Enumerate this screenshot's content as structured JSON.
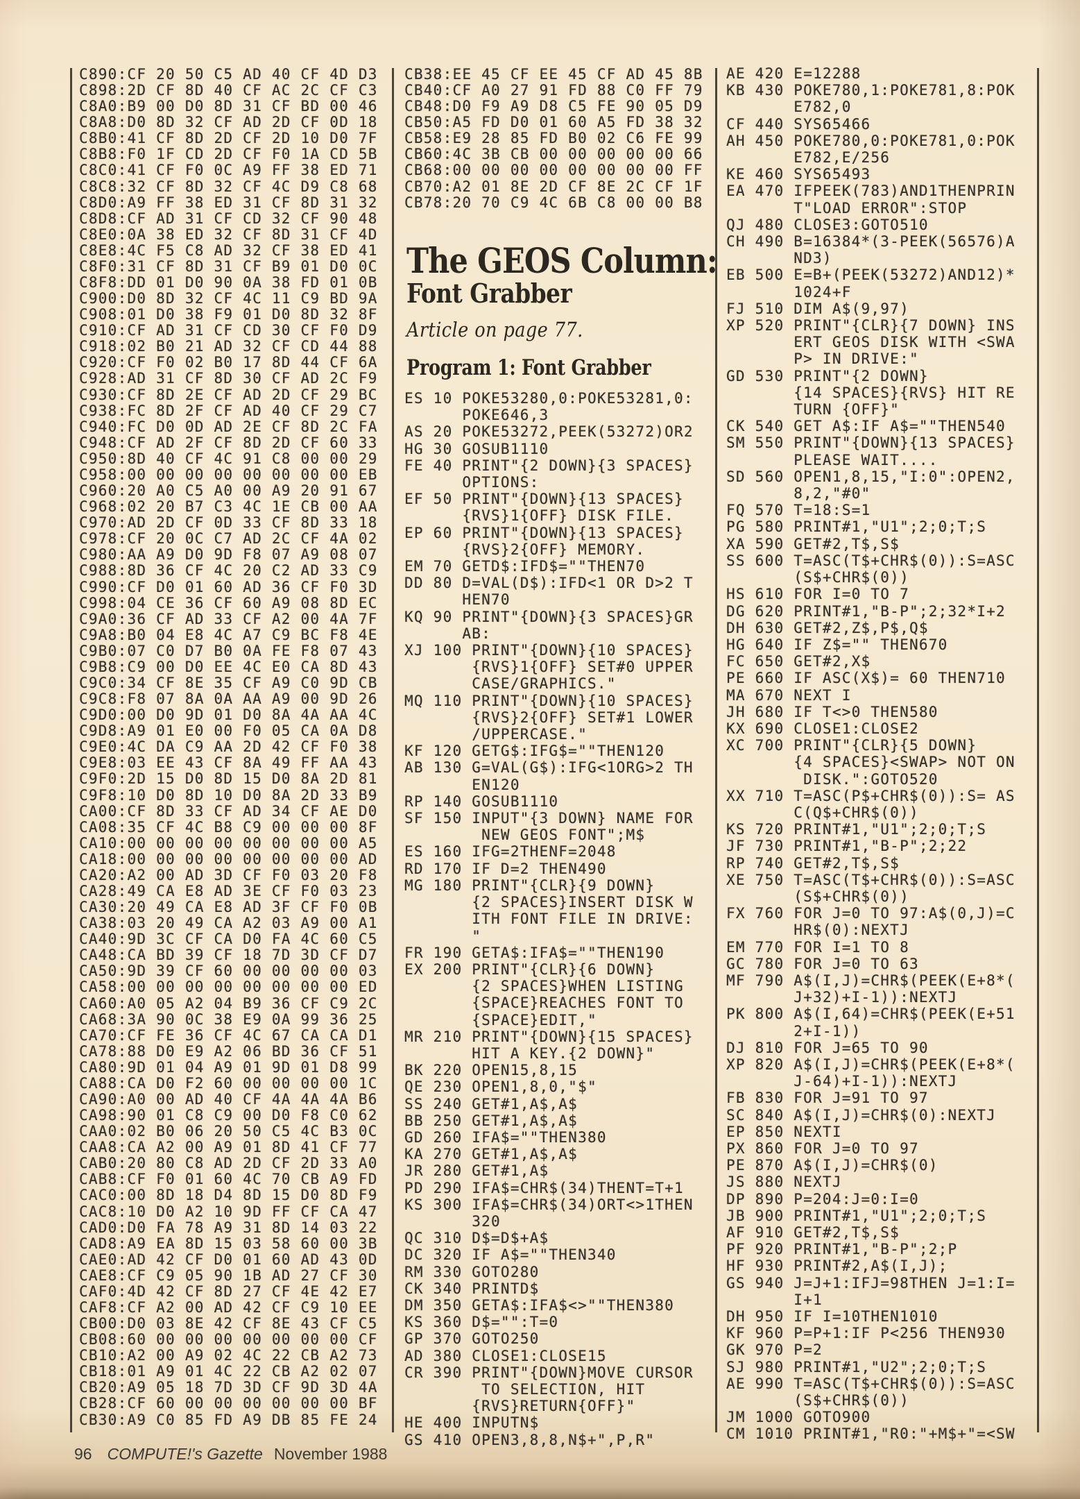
{
  "article": {
    "title": "The GEOS Column:",
    "subtitle": "Font Grabber",
    "note": "Article on page 77.",
    "program_heading": "Program 1: Font Grabber"
  },
  "footer": {
    "page_number": "96",
    "magazine": "COMPUTE!'s Gazette",
    "issue": "November 1988"
  },
  "listings": {
    "mlx_left": [
      "C890:CF 20 50 C5 AD 40 CF 4D D3",
      "C898:2D CF 8D 40 CF AC 2C CF C3",
      "C8A0:B9 00 D0 8D 31 CF BD 00 46",
      "C8A8:D0 8D 32 CF AD 2D CF 0D 18",
      "C8B0:41 CF 8D 2D CF 2D 10 D0 7F",
      "C8B8:F0 1F CD 2D CF F0 1A CD 5B",
      "C8C0:41 CF F0 0C A9 FF 38 ED 71",
      "C8C8:32 CF 8D 32 CF 4C D9 C8 68",
      "C8D0:A9 FF 38 ED 31 CF 8D 31 32",
      "C8D8:CF AD 31 CF CD 32 CF 90 48",
      "C8E0:0A 38 ED 32 CF 8D 31 CF 4D",
      "C8E8:4C F5 C8 AD 32 CF 38 ED 41",
      "C8F0:31 CF 8D 31 CF B9 01 D0 0C",
      "C8F8:DD 01 D0 90 0A 38 FD 01 0B",
      "C900:D0 8D 32 CF 4C 11 C9 BD 9A",
      "C908:01 D0 38 F9 01 D0 8D 32 8F",
      "C910:CF AD 31 CF CD 30 CF F0 D9",
      "C918:02 B0 21 AD 32 CF CD 44 88",
      "C920:CF F0 02 B0 17 8D 44 CF 6A",
      "C928:AD 31 CF 8D 30 CF AD 2C F9",
      "C930:CF 8D 2E CF AD 2D CF 29 BC",
      "C938:FC 8D 2F CF AD 40 CF 29 C7",
      "C940:FC D0 0D AD 2E CF 8D 2C FA",
      "C948:CF AD 2F CF 8D 2D CF 60 33",
      "C950:8D 40 CF 4C 91 C8 00 00 29",
      "C958:00 00 00 00 00 00 00 00 EB",
      "C960:20 A0 C5 A0 00 A9 20 91 67",
      "C968:02 20 B7 C3 4C 1E CB 00 AA",
      "C970:AD 2D CF 0D 33 CF 8D 33 18",
      "C978:CF 20 0C C7 AD 2C CF 4A 02",
      "C980:AA A9 D0 9D F8 07 A9 08 07",
      "C988:8D 36 CF 4C 20 C2 AD 33 C9",
      "C990:CF D0 01 60 AD 36 CF F0 3D",
      "C998:04 CE 36 CF 60 A9 08 8D EC",
      "C9A0:36 CF AD 33 CF A2 00 4A 7F",
      "C9A8:B0 04 E8 4C A7 C9 BC F8 4E",
      "C9B0:07 C0 D7 B0 0A FE F8 07 43",
      "C9B8:C9 00 D0 EE 4C E0 CA 8D 43",
      "C9C0:34 CF 8E 35 CF A9 C0 9D CB",
      "C9C8:F8 07 8A 0A AA A9 00 9D 26",
      "C9D0:00 D0 9D 01 D0 8A 4A AA 4C",
      "C9D8:A9 01 E0 00 F0 05 CA 0A D8",
      "C9E0:4C DA C9 AA 2D 42 CF F0 38",
      "C9E8:03 EE 43 CF 8A 49 FF AA 43",
      "C9F0:2D 15 D0 8D 15 D0 8A 2D 81",
      "C9F8:10 D0 8D 10 D0 8A 2D 33 B9",
      "CA00:CF 8D 33 CF AD 34 CF AE D0",
      "CA08:35 CF 4C B8 C9 00 00 00 8F",
      "CA10:00 00 00 00 00 00 00 00 A5",
      "CA18:00 00 00 00 00 00 00 00 AD",
      "CA20:A2 00 AD 3D CF F0 03 20 F8",
      "CA28:49 CA E8 AD 3E CF F0 03 23",
      "CA30:20 49 CA E8 AD 3F CF F0 0B",
      "CA38:03 20 49 CA A2 03 A9 00 A1",
      "CA40:9D 3C CF CA D0 FA 4C 60 C5",
      "CA48:CA BD 39 CF 18 7D 3D CF D7",
      "CA50:9D 39 CF 60 00 00 00 00 03",
      "CA58:00 00 00 00 00 00 00 00 ED",
      "CA60:A0 05 A2 04 B9 36 CF C9 2C",
      "CA68:3A 90 0C 38 E9 0A 99 36 25",
      "CA70:CF FE 36 CF 4C 67 CA CA D1",
      "CA78:88 D0 E9 A2 06 BD 36 CF 51",
      "CA80:9D 01 04 A9 01 9D 01 D8 99",
      "CA88:CA D0 F2 60 00 00 00 00 1C",
      "CA90:A0 00 AD 40 CF 4A 4A 4A B6",
      "CA98:90 01 C8 C9 00 D0 F8 C0 62",
      "CAA0:02 B0 06 20 50 C5 4C B3 0C",
      "CAA8:CA A2 00 A9 01 8D 41 CF 77",
      "CAB0:20 80 C8 AD 2D CF 2D 33 A0",
      "CAB8:CF F0 01 60 4C 70 CB A9 FD",
      "CAC0:00 8D 18 D4 8D 15 D0 8D F9",
      "CAC8:10 D0 A2 10 9D FF CF CA 47",
      "CAD0:D0 FA 78 A9 31 8D 14 03 22",
      "CAD8:A9 EA 8D 15 03 58 60 00 3B",
      "CAE0:AD 42 CF D0 01 60 AD 43 0D",
      "CAE8:CF C9 05 90 1B AD 27 CF 30",
      "CAF0:4D 42 CF 8D 27 CF 4E 42 E7",
      "CAF8:CF A2 00 AD 42 CF C9 10 EE",
      "CB00:D0 03 8E 42 CF 8E 43 CF C5",
      "CB08:60 00 00 00 00 00 00 00 CF",
      "CB10:A2 00 A9 02 4C 22 CB A2 73",
      "CB18:01 A9 01 4C 22 CB A2 02 07",
      "CB20:A9 05 18 7D 3D CF 9D 3D 4A",
      "CB28:CF 60 00 00 00 00 00 00 BF",
      "CB30:A9 C0 85 FD A9 DB 85 FE 24"
    ],
    "mlx_middle": [
      "CB38:EE 45 CF EE 45 CF AD 45 8B",
      "CB40:CF A0 27 91 FD 88 C0 FF 79",
      "CB48:D0 F9 A9 D8 C5 FE 90 05 D9",
      "CB50:A5 FD D0 01 60 A5 FD 38 32",
      "CB58:E9 28 85 FD B0 02 C6 FE 99",
      "CB60:4C 3B CB 00 00 00 00 00 66",
      "CB68:00 00 00 00 00 00 00 00 FF",
      "CB70:A2 01 8E 2D CF 8E 2C CF 1F",
      "CB78:20 70 C9 4C 6B C8 00 00 B8"
    ],
    "basic_middle": [
      "ES 10 POKE53280,0:POKE53281,0:",
      "      POKE646,3",
      "AS 20 POKE53272,PEEK(53272)OR2",
      "HG 30 GOSUB1110",
      "FE 40 PRINT\"{2 DOWN}{3 SPACES}",
      "      OPTIONS:",
      "EF 50 PRINT\"{DOWN}{13 SPACES}",
      "      {RVS}1{OFF} DISK FILE.",
      "EP 60 PRINT\"{DOWN}{13 SPACES}",
      "      {RVS}2{OFF} MEMORY.",
      "EM 70 GETD$:IFD$=\"\"THEN70",
      "DD 80 D=VAL(D$):IFD<1 OR D>2 T",
      "      HEN70",
      "KQ 90 PRINT\"{DOWN}{3 SPACES}GR",
      "      AB:",
      "XJ 100 PRINT\"{DOWN}{10 SPACES}",
      "       {RVS}1{OFF} SET#0 UPPER",
      "       CASE/GRAPHICS.\"",
      "MQ 110 PRINT\"{DOWN}{10 SPACES}",
      "       {RVS}2{OFF} SET#1 LOWER",
      "       /UPPERCASE.\"",
      "KF 120 GETG$:IFG$=\"\"THEN120",
      "AB 130 G=VAL(G$):IFG<1ORG>2 TH",
      "       EN120",
      "RP 140 GOSUB1110",
      "SF 150 INPUT\"{3 DOWN} NAME FOR",
      "        NEW GEOS FONT\";M$",
      "ES 160 IFG=2THENF=2048",
      "RD 170 IF D=2 THEN490",
      "MG 180 PRINT\"{CLR}{9 DOWN}",
      "       {2 SPACES}INSERT DISK W",
      "       ITH FONT FILE IN DRIVE:",
      "       \"",
      "FR 190 GETA$:IFA$=\"\"THEN190",
      "EX 200 PRINT\"{CLR}{6 DOWN}",
      "       {2 SPACES}WHEN LISTING",
      "       {SPACE}REACHES FONT TO",
      "       {SPACE}EDIT,\"",
      "MR 210 PRINT\"{DOWN}{15 SPACES}",
      "       HIT A KEY.{2 DOWN}\"",
      "BK 220 OPEN15,8,15",
      "QE 230 OPEN1,8,0,\"$\"",
      "SS 240 GET#1,A$,A$",
      "BB 250 GET#1,A$,A$",
      "GD 260 IFA$=\"\"THEN380",
      "KA 270 GET#1,A$,A$",
      "JR 280 GET#1,A$",
      "PD 290 IFA$=CHR$(34)THENT=T+1",
      "KS 300 IFA$=CHR$(34)ORT<>1THEN",
      "       320",
      "QC 310 D$=D$+A$",
      "DC 320 IF A$=\"\"THEN340",
      "RM 330 GOTO280",
      "CK 340 PRINTD$",
      "DM 350 GETA$:IFA$<>\"\"THEN380",
      "KS 360 D$=\"\":T=0",
      "GP 370 GOTO250",
      "AD 380 CLOSE1:CLOSE15",
      "CR 390 PRINT\"{DOWN}MOVE CURSOR",
      "        TO SELECTION, HIT",
      "       {RVS}RETURN{OFF}\"",
      "HE 400 INPUTN$",
      "GS 410 OPEN3,8,8,N$+\",P,R\""
    ],
    "basic_right": [
      "AE 420 E=12288",
      "KB 430 POKE780,1:POKE781,8:POK",
      "       E782,0",
      "CF 440 SYS65466",
      "AH 450 POKE780,0:POKE781,0:POK",
      "       E782,E/256",
      "KE 460 SYS65493",
      "EA 470 IFPEEK(783)AND1THENPRIN",
      "       T\"LOAD ERROR\":STOP",
      "QJ 480 CLOSE3:GOTO510",
      "CH 490 B=16384*(3-PEEK(56576)A",
      "       ND3)",
      "EB 500 E=B+(PEEK(53272)AND12)*",
      "       1024+F",
      "FJ 510 DIM A$(9,97)",
      "XP 520 PRINT\"{CLR}{7 DOWN} INS",
      "       ERT GEOS DISK WITH <SWA",
      "       P> IN DRIVE:\"",
      "GD 530 PRINT\"{2 DOWN}",
      "       {14 SPACES}{RVS} HIT RE",
      "       TURN {OFF}\"",
      "CK 540 GET A$:IF A$=\"\"THEN540",
      "SM 550 PRINT\"{DOWN}{13 SPACES}",
      "       PLEASE WAIT....",
      "SD 560 OPEN1,8,15,\"I:0\":OPEN2,",
      "       8,2,\"#0\"",
      "FQ 570 T=18:S=1",
      "PG 580 PRINT#1,\"U1\";2;0;T;S",
      "XA 590 GET#2,T$,S$",
      "SS 600 T=ASC(T$+CHR$(0)):S=ASC",
      "       (S$+CHR$(0))",
      "HS 610 FOR I=0 TO 7",
      "DG 620 PRINT#1,\"B-P\";2;32*I+2",
      "DH 630 GET#2,Z$,P$,Q$",
      "HG 640 IF Z$=\"\" THEN670",
      "FC 650 GET#2,X$",
      "PE 660 IF ASC(X$)= 60 THEN710",
      "MA 670 NEXT I",
      "JH 680 IF T<>0 THEN580",
      "KX 690 CLOSE1:CLOSE2",
      "XC 700 PRINT\"{CLR}{5 DOWN}",
      "       {4 SPACES}<SWAP> NOT ON",
      "        DISK.\":GOTO520",
      "XX 710 T=ASC(P$+CHR$(0)):S= AS",
      "       C(Q$+CHR$(0))",
      "KS 720 PRINT#1,\"U1\";2;0;T;S",
      "JF 730 PRINT#1,\"B-P\";2;22",
      "RP 740 GET#2,T$,S$",
      "XE 750 T=ASC(T$+CHR$(0)):S=ASC",
      "       (S$+CHR$(0))",
      "FX 760 FOR J=0 TO 97:A$(0,J)=C",
      "       HR$(0):NEXTJ",
      "EM 770 FOR I=1 TO 8",
      "GC 780 FOR J=0 TO 63",
      "MF 790 A$(I,J)=CHR$(PEEK(E+8*(",
      "       J+32)+I-1)):NEXTJ",
      "PK 800 A$(I,64)=CHR$(PEEK(E+51",
      "       2+I-1))",
      "DJ 810 FOR J=65 TO 90",
      "XP 820 A$(I,J)=CHR$(PEEK(E+8*(",
      "       J-64)+I-1)):NEXTJ",
      "FB 830 FOR J=91 TO 97",
      "SC 840 A$(I,J)=CHR$(0):NEXTJ",
      "EP 850 NEXTI",
      "PX 860 FOR J=0 TO 97",
      "PE 870 A$(I,J)=CHR$(0)",
      "JS 880 NEXTJ",
      "DP 890 P=204:J=0:I=0",
      "JB 900 PRINT#1,\"U1\";2;0;T;S",
      "AF 910 GET#2,T$,S$",
      "PF 920 PRINT#1,\"B-P\";2;P",
      "HF 930 PRINT#2,A$(I,J);",
      "GS 940 J=J+1:IFJ=98THEN J=1:I=",
      "       I+1",
      "DH 950 IF I=10THEN1010",
      "KF 960 P=P+1:IF P<256 THEN930",
      "GK 970 P=2",
      "SJ 980 PRINT#1,\"U2\";2;0;T;S",
      "AE 990 T=ASC(T$+CHR$(0)):S=ASC",
      "       (S$+CHR$(0))",
      "JM 1000 GOTO900",
      "CM 1010 PRINT#1,\"R0:\"+M$+\"=<SW"
    ]
  }
}
